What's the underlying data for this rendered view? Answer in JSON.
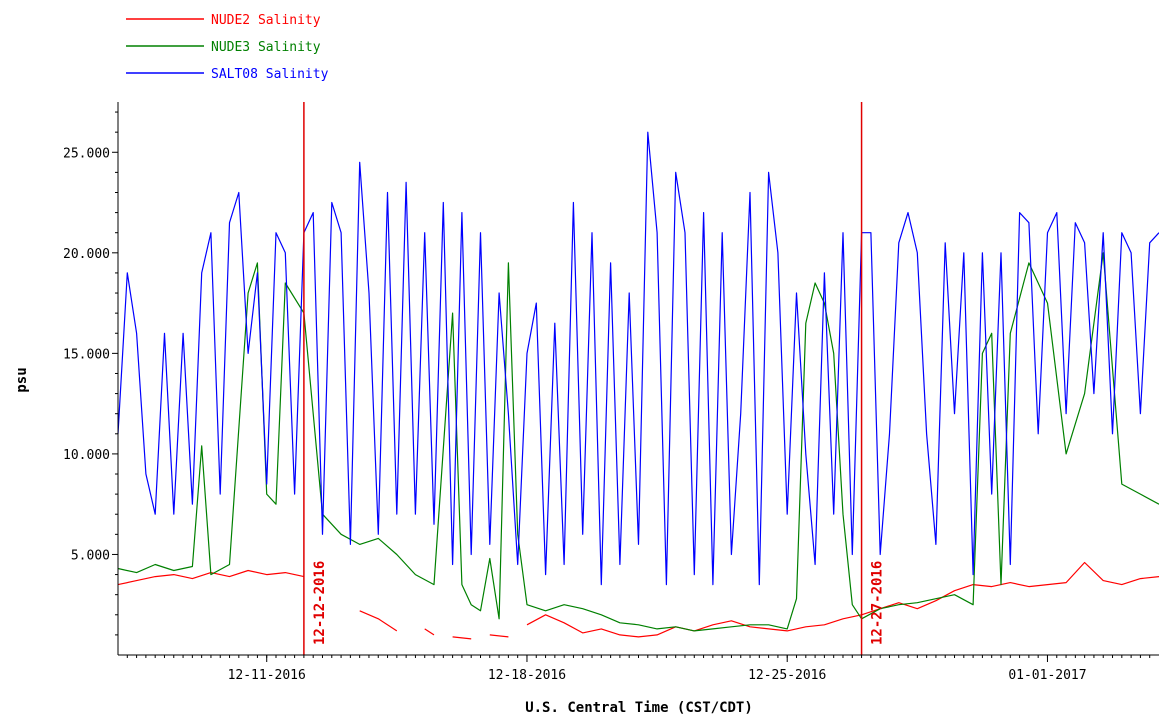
{
  "chart_data": {
    "type": "line",
    "title": "",
    "xlabel": "U.S. Central Time (CST/CDT)",
    "ylabel": "psu",
    "xlim": [
      "2016-12-07 00:00",
      "2017-01-04 00:00"
    ],
    "ylim": [
      0,
      27.5
    ],
    "y_ticks": [
      5,
      10,
      15,
      20,
      25
    ],
    "y_tick_labels": [
      "5.000",
      "10.000",
      "15.000",
      "20.000",
      "25.000"
    ],
    "x_ticks": [
      "2016-12-11 00:00",
      "2016-12-18 00:00",
      "2016-12-25 00:00",
      "2017-01-01 00:00"
    ],
    "x_tick_labels": [
      "12-11-2016",
      "12-18-2016",
      "12-25-2016",
      "01-01-2017"
    ],
    "grid": false,
    "legend_position": "top-left",
    "series": [
      {
        "name": "NUDE2 Salinity",
        "color": "#ff0000",
        "x": [
          "2016-12-07 00:00",
          "2016-12-07 12:00",
          "2016-12-08 00:00",
          "2016-12-08 12:00",
          "2016-12-09 00:00",
          "2016-12-09 12:00",
          "2016-12-10 00:00",
          "2016-12-10 12:00",
          "2016-12-11 00:00",
          "2016-12-11 12:00",
          "2016-12-12 00:00",
          null,
          "2016-12-13 12:00",
          "2016-12-14 00:00",
          "2016-12-14 12:00",
          null,
          "2016-12-15 06:00",
          "2016-12-15 12:00",
          null,
          "2016-12-16 00:00",
          "2016-12-16 12:00",
          null,
          "2016-12-17 00:00",
          "2016-12-17 12:00",
          null,
          "2016-12-18 00:00",
          "2016-12-18 12:00",
          "2016-12-19 00:00",
          "2016-12-19 12:00",
          "2016-12-20 00:00",
          "2016-12-20 12:00",
          "2016-12-21 00:00",
          "2016-12-21 12:00",
          "2016-12-22 00:00",
          "2016-12-22 12:00",
          "2016-12-23 00:00",
          "2016-12-23 12:00",
          "2016-12-24 00:00",
          "2016-12-24 12:00",
          "2016-12-25 00:00",
          "2016-12-25 12:00",
          "2016-12-26 00:00",
          "2016-12-26 12:00",
          "2016-12-27 00:00",
          "2016-12-27 12:00",
          "2016-12-28 00:00",
          "2016-12-28 12:00",
          "2016-12-29 00:00",
          "2016-12-29 12:00",
          "2016-12-30 00:00",
          "2016-12-30 12:00",
          "2016-12-31 00:00",
          "2016-12-31 12:00",
          "2017-01-01 00:00",
          "2017-01-01 12:00",
          "2017-01-02 00:00",
          "2017-01-02 12:00",
          "2017-01-03 00:00",
          "2017-01-03 12:00",
          "2017-01-04 00:00"
        ],
        "y": [
          3.5,
          3.7,
          3.9,
          4.0,
          3.8,
          4.1,
          3.9,
          4.2,
          4.0,
          4.1,
          3.9,
          null,
          2.2,
          1.8,
          1.2,
          null,
          1.3,
          1.0,
          null,
          0.9,
          0.8,
          null,
          1.0,
          0.9,
          null,
          1.5,
          2.0,
          1.6,
          1.1,
          1.3,
          1.0,
          0.9,
          1.0,
          1.4,
          1.2,
          1.5,
          1.7,
          1.4,
          1.3,
          1.2,
          1.4,
          1.5,
          1.8,
          2.0,
          2.3,
          2.6,
          2.3,
          2.7,
          3.2,
          3.5,
          3.4,
          3.6,
          3.4,
          3.5,
          3.6,
          4.6,
          3.7,
          3.5,
          3.8,
          3.9
        ]
      },
      {
        "name": "NUDE3 Salinity",
        "color": "#008000",
        "x": [
          "2016-12-07 00:00",
          "2016-12-07 12:00",
          "2016-12-08 00:00",
          "2016-12-08 12:00",
          "2016-12-09 00:00",
          "2016-12-09 06:00",
          "2016-12-09 12:00",
          "2016-12-10 00:00",
          "2016-12-10 12:00",
          "2016-12-10 18:00",
          "2016-12-11 00:00",
          "2016-12-11 06:00",
          "2016-12-11 12:00",
          "2016-12-12 00:00",
          "2016-12-12 12:00",
          "2016-12-13 00:00",
          "2016-12-13 12:00",
          "2016-12-14 00:00",
          "2016-12-14 12:00",
          "2016-12-15 00:00",
          "2016-12-15 12:00",
          "2016-12-16 00:00",
          "2016-12-16 06:00",
          "2016-12-16 12:00",
          "2016-12-16 18:00",
          "2016-12-17 00:00",
          "2016-12-17 06:00",
          "2016-12-17 12:00",
          "2016-12-17 18:00",
          "2016-12-18 00:00",
          "2016-12-18 12:00",
          "2016-12-19 00:00",
          "2016-12-19 12:00",
          "2016-12-20 00:00",
          "2016-12-20 12:00",
          "2016-12-21 00:00",
          "2016-12-21 12:00",
          "2016-12-22 00:00",
          "2016-12-22 12:00",
          "2016-12-23 00:00",
          "2016-12-23 12:00",
          "2016-12-24 00:00",
          "2016-12-24 12:00",
          "2016-12-25 00:00",
          "2016-12-25 06:00",
          "2016-12-25 12:00",
          "2016-12-25 18:00",
          "2016-12-26 00:00",
          "2016-12-26 06:00",
          "2016-12-26 12:00",
          "2016-12-26 18:00",
          "2016-12-27 00:00",
          "2016-12-27 12:00",
          "2016-12-28 00:00",
          "2016-12-28 12:00",
          "2016-12-29 00:00",
          "2016-12-29 12:00",
          "2016-12-30 00:00",
          "2016-12-30 06:00",
          "2016-12-30 12:00",
          "2016-12-30 18:00",
          "2016-12-31 00:00",
          "2016-12-31 12:00",
          "2017-01-01 00:00",
          "2017-01-01 12:00",
          "2017-01-02 00:00",
          "2017-01-02 12:00",
          "2017-01-03 00:00",
          "2017-01-03 12:00",
          "2017-01-04 00:00"
        ],
        "y": [
          4.3,
          4.1,
          4.5,
          4.2,
          4.4,
          10.4,
          4.0,
          4.5,
          18.0,
          19.5,
          8.0,
          7.5,
          18.5,
          17.0,
          7.0,
          6.0,
          5.5,
          5.8,
          5.0,
          4.0,
          3.5,
          17.0,
          3.5,
          2.5,
          2.2,
          4.8,
          1.8,
          19.5,
          6.0,
          2.5,
          2.2,
          2.5,
          2.3,
          2.0,
          1.6,
          1.5,
          1.3,
          1.4,
          1.2,
          1.3,
          1.4,
          1.5,
          1.5,
          1.3,
          2.8,
          16.5,
          18.5,
          17.5,
          15.0,
          7.0,
          2.5,
          1.8,
          2.3,
          2.5,
          2.6,
          2.8,
          3.0,
          2.5,
          15.0,
          16.0,
          3.5,
          16.0,
          19.5,
          17.5,
          10.0,
          13.0,
          20.0,
          8.5,
          8.0,
          7.5
        ]
      },
      {
        "name": "SALT08 Salinity",
        "color": "#0000ff",
        "x": [
          "2016-12-07 00:00",
          "2016-12-07 06:00",
          "2016-12-07 12:00",
          "2016-12-07 18:00",
          "2016-12-08 00:00",
          "2016-12-08 06:00",
          "2016-12-08 12:00",
          "2016-12-08 18:00",
          "2016-12-09 00:00",
          "2016-12-09 06:00",
          "2016-12-09 12:00",
          "2016-12-09 18:00",
          "2016-12-10 00:00",
          "2016-12-10 06:00",
          "2016-12-10 12:00",
          "2016-12-10 18:00",
          "2016-12-11 00:00",
          "2016-12-11 06:00",
          "2016-12-11 12:00",
          "2016-12-11 18:00",
          "2016-12-12 00:00",
          "2016-12-12 06:00",
          "2016-12-12 12:00",
          "2016-12-12 18:00",
          "2016-12-13 00:00",
          "2016-12-13 06:00",
          "2016-12-13 12:00",
          "2016-12-13 18:00",
          "2016-12-14 00:00",
          "2016-12-14 06:00",
          "2016-12-14 12:00",
          "2016-12-14 18:00",
          "2016-12-15 00:00",
          "2016-12-15 06:00",
          "2016-12-15 12:00",
          "2016-12-15 18:00",
          "2016-12-16 00:00",
          "2016-12-16 06:00",
          "2016-12-16 12:00",
          "2016-12-16 18:00",
          "2016-12-17 00:00",
          "2016-12-17 06:00",
          "2016-12-17 12:00",
          "2016-12-17 18:00",
          "2016-12-18 00:00",
          "2016-12-18 06:00",
          "2016-12-18 12:00",
          "2016-12-18 18:00",
          "2016-12-19 00:00",
          "2016-12-19 06:00",
          "2016-12-19 12:00",
          "2016-12-19 18:00",
          "2016-12-20 00:00",
          "2016-12-20 06:00",
          "2016-12-20 12:00",
          "2016-12-20 18:00",
          "2016-12-21 00:00",
          "2016-12-21 06:00",
          "2016-12-21 12:00",
          "2016-12-21 18:00",
          "2016-12-22 00:00",
          "2016-12-22 06:00",
          "2016-12-22 12:00",
          "2016-12-22 18:00",
          "2016-12-23 00:00",
          "2016-12-23 06:00",
          "2016-12-23 12:00",
          "2016-12-23 18:00",
          "2016-12-24 00:00",
          "2016-12-24 06:00",
          "2016-12-24 12:00",
          "2016-12-24 18:00",
          "2016-12-25 00:00",
          "2016-12-25 06:00",
          "2016-12-25 12:00",
          "2016-12-25 18:00",
          "2016-12-26 00:00",
          "2016-12-26 06:00",
          "2016-12-26 12:00",
          "2016-12-26 18:00",
          "2016-12-27 00:00",
          "2016-12-27 06:00",
          "2016-12-27 12:00",
          "2016-12-27 18:00",
          "2016-12-28 00:00",
          "2016-12-28 06:00",
          "2016-12-28 12:00",
          "2016-12-28 18:00",
          "2016-12-29 00:00",
          "2016-12-29 06:00",
          "2016-12-29 12:00",
          "2016-12-29 18:00",
          "2016-12-30 00:00",
          "2016-12-30 06:00",
          "2016-12-30 12:00",
          "2016-12-30 18:00",
          "2016-12-31 00:00",
          "2016-12-31 06:00",
          "2016-12-31 12:00",
          "2016-12-31 18:00",
          "2017-01-01 00:00",
          "2017-01-01 06:00",
          "2017-01-01 12:00",
          "2017-01-01 18:00",
          "2017-01-02 00:00",
          "2017-01-02 06:00",
          "2017-01-02 12:00",
          "2017-01-02 18:00",
          "2017-01-03 00:00",
          "2017-01-03 06:00",
          "2017-01-03 12:00",
          "2017-01-03 18:00",
          "2017-01-04 00:00"
        ],
        "y": [
          11.0,
          19.0,
          16.0,
          9.0,
          7.0,
          16.0,
          7.0,
          16.0,
          7.5,
          19.0,
          21.0,
          8.0,
          21.5,
          23.0,
          15.0,
          19.0,
          8.5,
          21.0,
          20.0,
          8.0,
          21.0,
          22.0,
          6.0,
          22.5,
          21.0,
          5.5,
          24.5,
          18.0,
          6.0,
          23.0,
          7.0,
          23.5,
          7.0,
          21.0,
          6.5,
          22.5,
          4.5,
          22.0,
          5.0,
          21.0,
          5.5,
          18.0,
          12.0,
          4.5,
          15.0,
          17.5,
          4.0,
          16.5,
          4.5,
          22.5,
          6.0,
          21.0,
          3.5,
          19.5,
          4.5,
          18.0,
          5.5,
          26.0,
          21.0,
          3.5,
          24.0,
          21.0,
          4.0,
          22.0,
          3.5,
          21.0,
          5.0,
          12.0,
          23.0,
          3.5,
          24.0,
          20.0,
          7.0,
          18.0,
          10.0,
          4.5,
          19.0,
          7.0,
          21.0,
          5.0,
          21.0,
          21.0,
          5.0,
          11.0,
          20.5,
          22.0,
          20.0,
          11.0,
          5.5,
          20.5,
          12.0,
          20.0,
          4.0,
          20.0,
          8.0,
          20.0,
          4.5,
          22.0,
          21.5,
          11.0,
          21.0,
          22.0,
          12.0,
          21.5,
          20.5,
          13.0,
          21.0,
          11.0,
          21.0,
          20.0,
          12.0,
          20.5,
          21.0
        ]
      }
    ],
    "markers": [
      {
        "x": "2016-12-12 00:00",
        "label": "12-12-2016",
        "color": "#e00000"
      },
      {
        "x": "2016-12-27 00:00",
        "label": "12-27-2016",
        "color": "#e00000"
      }
    ]
  }
}
